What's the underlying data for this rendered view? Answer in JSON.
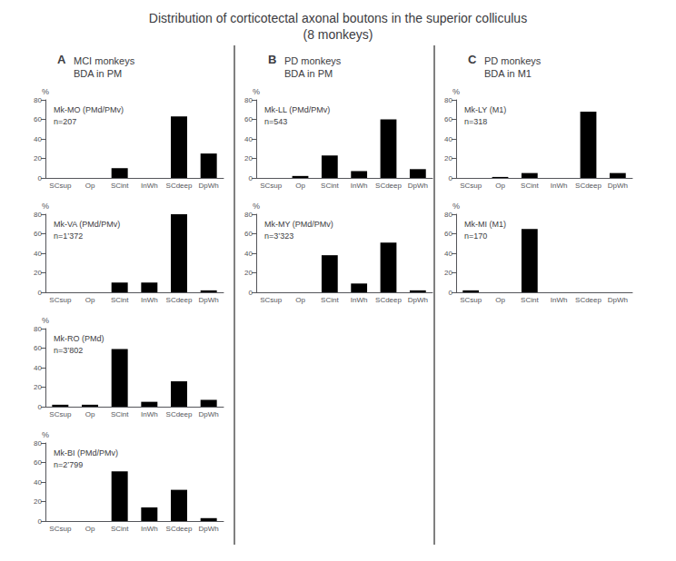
{
  "title": "Distribution of corticotectal axonal boutons in the superior colliculus\n(8 monkeys)",
  "headers": [
    {
      "letter": "A",
      "text": "MCI monkeys\nBDA in PM"
    },
    {
      "letter": "B",
      "text": "PD monkeys\nBDA in PM"
    },
    {
      "letter": "C",
      "text": "PD monkeys\nBDA in M1"
    }
  ],
  "chart_data": [
    {
      "type": "bar",
      "title": "Mk-MO (PMd/PMv)",
      "subtitle": "n=207",
      "ylabel": "%",
      "categories": [
        "SCsup",
        "Op",
        "SCint",
        "InWh",
        "SCdeep",
        "DpWh"
      ],
      "values": [
        0,
        0,
        10,
        0,
        63,
        25
      ],
      "color": "#000000",
      "ylim": [
        0,
        80
      ],
      "yticks": [
        0,
        20,
        40,
        60,
        80
      ],
      "grid": false
    },
    {
      "type": "bar",
      "title": "Mk-VA (PMd/PMv)",
      "subtitle": "n=1’372",
      "ylabel": "%",
      "categories": [
        "SCsup",
        "Op",
        "SCint",
        "InWh",
        "SCdeep",
        "DpWh"
      ],
      "values": [
        0,
        0,
        10,
        10,
        80,
        2
      ],
      "color": "#000000",
      "ylim": [
        0,
        80
      ],
      "yticks": [
        0,
        20,
        40,
        60,
        80
      ],
      "grid": false
    },
    {
      "type": "bar",
      "title": "Mk-RO (PMd)",
      "subtitle": "n=3’802",
      "ylabel": "%",
      "categories": [
        "SCsup",
        "Op",
        "SCint",
        "InWh",
        "SCdeep",
        "DpWh"
      ],
      "values": [
        2,
        2,
        59,
        5,
        26,
        7
      ],
      "color": "#000000",
      "ylim": [
        0,
        80
      ],
      "yticks": [
        0,
        20,
        40,
        60,
        80
      ],
      "grid": false
    },
    {
      "type": "bar",
      "title": "Mk-BI (PMd/PMv)",
      "subtitle": "n=2’799",
      "ylabel": "%",
      "categories": [
        "SCsup",
        "Op",
        "SCint",
        "InWh",
        "SCdeep",
        "DpWh"
      ],
      "values": [
        0,
        0,
        51,
        14,
        32,
        3
      ],
      "color": "#000000",
      "ylim": [
        0,
        80
      ],
      "yticks": [
        0,
        20,
        40,
        60,
        80
      ],
      "grid": false
    },
    {
      "type": "bar",
      "title": "Mk-LL (PMd/PMv)",
      "subtitle": "n=543",
      "ylabel": "%",
      "categories": [
        "SCsup",
        "Op",
        "SCint",
        "InWh",
        "SCdeep",
        "DpWh"
      ],
      "values": [
        0,
        2,
        23,
        7,
        60,
        9
      ],
      "color": "#000000",
      "ylim": [
        0,
        80
      ],
      "yticks": [
        0,
        20,
        40,
        60,
        80
      ],
      "grid": false
    },
    {
      "type": "bar",
      "title": "Mk-MY (PMd/PMv)",
      "subtitle": "n=3’323",
      "ylabel": "%",
      "categories": [
        "SCsup",
        "Op",
        "SCint",
        "InWh",
        "SCdeep",
        "DpWh"
      ],
      "values": [
        0,
        0,
        38,
        9,
        51,
        2
      ],
      "color": "#000000",
      "ylim": [
        0,
        80
      ],
      "yticks": [
        0,
        20,
        40,
        60,
        80
      ],
      "grid": false
    },
    {
      "type": "bar",
      "title": "Mk-LY (M1)",
      "subtitle": "n=318",
      "ylabel": "%",
      "categories": [
        "SCsup",
        "Op",
        "SCint",
        "InWh",
        "SCdeep",
        "DpWh"
      ],
      "values": [
        0,
        1,
        5,
        0,
        68,
        5
      ],
      "color": "#000000",
      "ylim": [
        0,
        80
      ],
      "yticks": [
        0,
        20,
        40,
        60,
        80
      ],
      "grid": false
    },
    {
      "type": "bar",
      "title": "Mk-MI (M1)",
      "subtitle": "n=170",
      "ylabel": "%",
      "categories": [
        "SCsup",
        "Op",
        "SCint",
        "InWh",
        "SCdeep",
        "DpWh"
      ],
      "values": [
        2,
        0,
        65,
        0,
        0,
        0
      ],
      "color": "#000000",
      "ylim": [
        0,
        80
      ],
      "yticks": [
        0,
        20,
        40,
        60,
        80
      ],
      "grid": false
    }
  ]
}
